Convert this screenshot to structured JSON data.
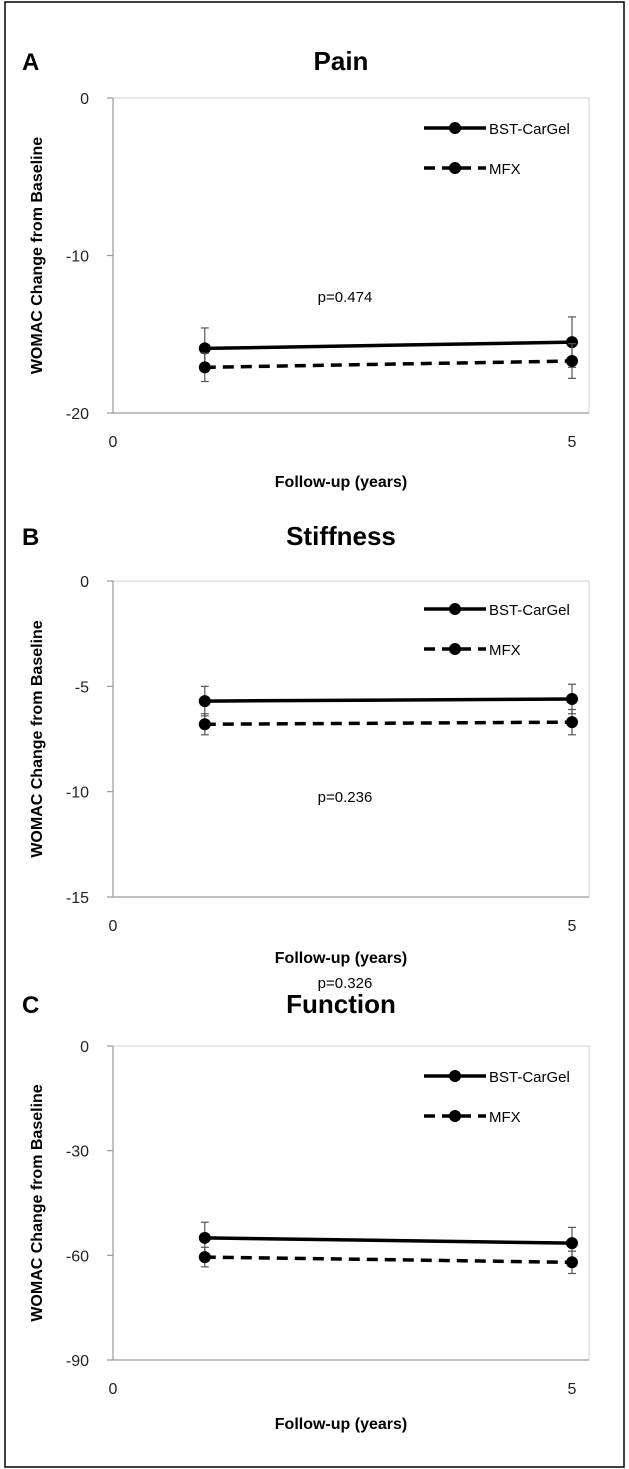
{
  "chart_data": [
    {
      "type": "line",
      "panel": "A",
      "title": "Pain",
      "ylabel": "WOMAC Change from Baseline",
      "xlabel": "Follow-up (years)",
      "ylim": [
        -20,
        0
      ],
      "yticks": [
        0,
        -10,
        -20
      ],
      "xticks": [
        "0",
        "5"
      ],
      "xlim": [
        0,
        5
      ],
      "x": [
        1,
        5
      ],
      "annotation": "p=0.474",
      "series": [
        {
          "name": "BST-CarGel",
          "style": "solid",
          "values": [
            -15.9,
            -15.5
          ],
          "error": [
            1.3,
            1.6
          ]
        },
        {
          "name": "MFX",
          "style": "dashed",
          "values": [
            -17.1,
            -16.7
          ],
          "error": [
            0.9,
            1.1
          ]
        }
      ]
    },
    {
      "type": "line",
      "panel": "B",
      "title": "Stiffness",
      "ylabel": "WOMAC Change from Baseline",
      "xlabel": "Follow-up (years)",
      "ylim": [
        -15,
        0
      ],
      "yticks": [
        0,
        -5,
        -10,
        -15
      ],
      "xticks": [
        "0",
        "5"
      ],
      "xlim": [
        0,
        5
      ],
      "x": [
        1,
        5
      ],
      "annotation": "p=0.236",
      "series": [
        {
          "name": "BST-CarGel",
          "style": "solid",
          "values": [
            -5.7,
            -5.6
          ],
          "error": [
            0.7,
            0.7
          ]
        },
        {
          "name": "MFX",
          "style": "dashed",
          "values": [
            -6.8,
            -6.7
          ],
          "error": [
            0.5,
            0.6
          ]
        }
      ]
    },
    {
      "type": "line",
      "panel": "C",
      "title": "Function",
      "ylabel": "WOMAC Change from Baseline",
      "xlabel": "Follow-up (years)",
      "ylim": [
        -90,
        0
      ],
      "yticks": [
        0,
        -30,
        -60,
        -90
      ],
      "xticks": [
        "0",
        "5"
      ],
      "xlim": [
        0,
        5
      ],
      "x": [
        1,
        5
      ],
      "annotation": "p=0.326",
      "series": [
        {
          "name": "BST-CarGel",
          "style": "solid",
          "values": [
            -55.0,
            -56.5
          ],
          "error": [
            4.5,
            4.5
          ]
        },
        {
          "name": "MFX",
          "style": "dashed",
          "values": [
            -60.5,
            -62.0
          ],
          "error": [
            2.8,
            3.2
          ]
        }
      ]
    }
  ],
  "colors": {
    "line": "#000000",
    "errorbar": "#555555",
    "axis": "#9a9a9a",
    "border": "#000000"
  }
}
